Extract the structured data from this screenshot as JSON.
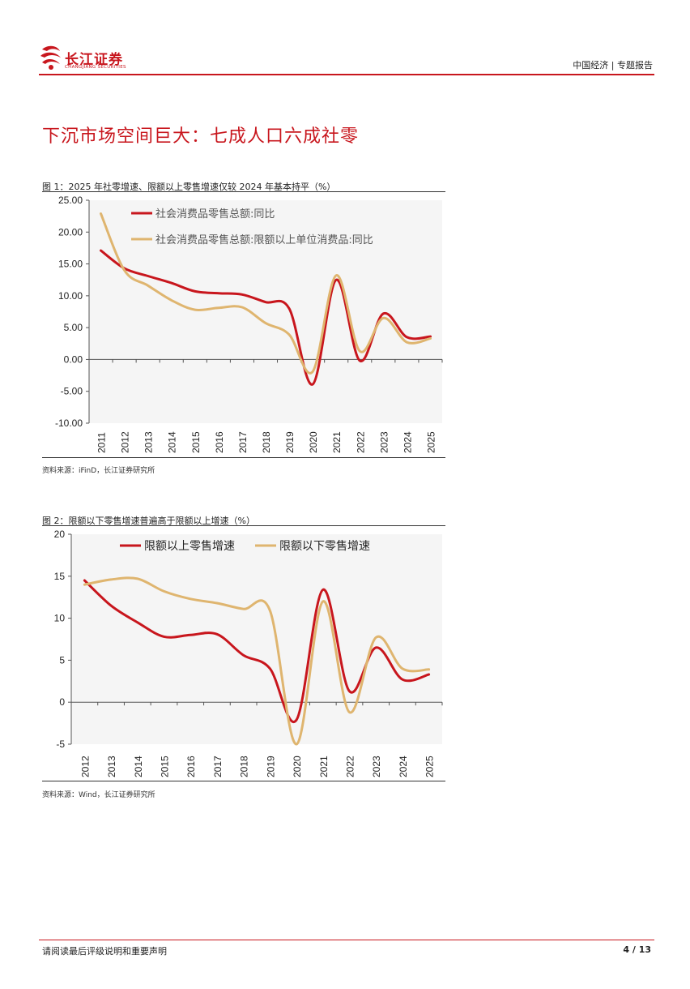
{
  "header": {
    "logo_name": "长江证券",
    "logo_sub": "CHANGJIANG SECURITIES",
    "right_text": "中国经济 | 专题报告"
  },
  "section_title": "下沉市场空间巨大：七成人口六成社零",
  "figure1": {
    "caption": "图 1：2025 年社零增速、限额以上零售增速仅较 2024 年基本持平（%）",
    "source": "资料来源：iFinD，长江证券研究所"
  },
  "figure2": {
    "caption": "图 2：限额以下零售增速普遍高于限额以上增速（%）",
    "source": "资料来源：Wind，长江证券研究所"
  },
  "footer": {
    "left": "请阅读最后评级说明和重要声明",
    "right": "4 / 13"
  },
  "colors": {
    "red": "#c8161d",
    "tan": "#dfb56f",
    "bg": "#f5f5f5"
  },
  "chart_data": [
    {
      "type": "line",
      "title": "",
      "x": [
        "2011",
        "2012",
        "2013",
        "2014",
        "2015",
        "2016",
        "2017",
        "2018",
        "2019",
        "2020",
        "2021",
        "2022",
        "2023",
        "2024",
        "2025"
      ],
      "ylim": [
        -10,
        25
      ],
      "yticks": [
        -10,
        -5,
        0,
        5,
        10,
        15,
        20,
        25
      ],
      "ytick_labels": [
        "-10.00",
        "-5.00",
        "0.00",
        "5.00",
        "10.00",
        "15.00",
        "20.00",
        "25.00"
      ],
      "legend_position": "top-left",
      "series": [
        {
          "name": "社会消费品零售总额:同比",
          "color": "#c8161d",
          "points": [
            [
              0,
              17.1
            ],
            [
              1,
              14.3
            ],
            [
              2,
              13.1
            ],
            [
              3,
              12.0
            ],
            [
              4,
              10.7
            ],
            [
              5,
              10.4
            ],
            [
              6,
              10.2
            ],
            [
              7,
              9.0
            ],
            [
              8,
              8.0
            ],
            [
              9,
              -3.9
            ],
            [
              10,
              12.5
            ],
            [
              11,
              -0.2
            ],
            [
              12,
              7.2
            ],
            [
              13,
              3.5
            ],
            [
              14,
              3.6
            ]
          ]
        },
        {
          "name": "社会消费品零售总额:限额以上单位消费品:同比",
          "color": "#dfb56f",
          "points": [
            [
              0,
              22.9
            ],
            [
              1,
              14.0
            ],
            [
              2,
              11.6
            ],
            [
              3,
              9.3
            ],
            [
              4,
              7.8
            ],
            [
              5,
              8.1
            ],
            [
              6,
              8.2
            ],
            [
              7,
              5.7
            ],
            [
              8,
              3.9
            ],
            [
              9,
              -1.9
            ],
            [
              10,
              13.2
            ],
            [
              11,
              1.3
            ],
            [
              12,
              6.5
            ],
            [
              13,
              2.7
            ],
            [
              14,
              3.3
            ]
          ]
        }
      ]
    },
    {
      "type": "line",
      "title": "",
      "x": [
        "2012",
        "2013",
        "2014",
        "2015",
        "2016",
        "2017",
        "2018",
        "2019",
        "2020",
        "2021",
        "2022",
        "2023",
        "2024",
        "2025"
      ],
      "ylim": [
        -5,
        20
      ],
      "yticks": [
        -5,
        0,
        5,
        10,
        15,
        20
      ],
      "ytick_labels": [
        "-5",
        "0",
        "5",
        "10",
        "15",
        "20"
      ],
      "legend_position": "top",
      "series": [
        {
          "name": "限额以上零售增速",
          "color": "#c8161d",
          "points": [
            [
              0,
              14.5
            ],
            [
              1,
              11.5
            ],
            [
              2,
              9.5
            ],
            [
              3,
              7.8
            ],
            [
              4,
              8.0
            ],
            [
              5,
              8.1
            ],
            [
              6,
              5.6
            ],
            [
              7,
              4.0
            ],
            [
              8,
              -2.1
            ],
            [
              9,
              13.4
            ],
            [
              10,
              1.3
            ],
            [
              11,
              6.5
            ],
            [
              12,
              2.7
            ],
            [
              13,
              3.3
            ]
          ]
        },
        {
          "name": "限额以下零售增速",
          "color": "#dfb56f",
          "points": [
            [
              0,
              14.0
            ],
            [
              1,
              14.6
            ],
            [
              2,
              14.7
            ],
            [
              3,
              13.2
            ],
            [
              4,
              12.3
            ],
            [
              5,
              11.8
            ],
            [
              6,
              11.1
            ],
            [
              7,
              10.9
            ],
            [
              8,
              -5.0
            ],
            [
              9,
              12.0
            ],
            [
              10,
              -1.2
            ],
            [
              11,
              7.7
            ],
            [
              12,
              4.0
            ],
            [
              13,
              3.9
            ]
          ]
        }
      ]
    }
  ]
}
